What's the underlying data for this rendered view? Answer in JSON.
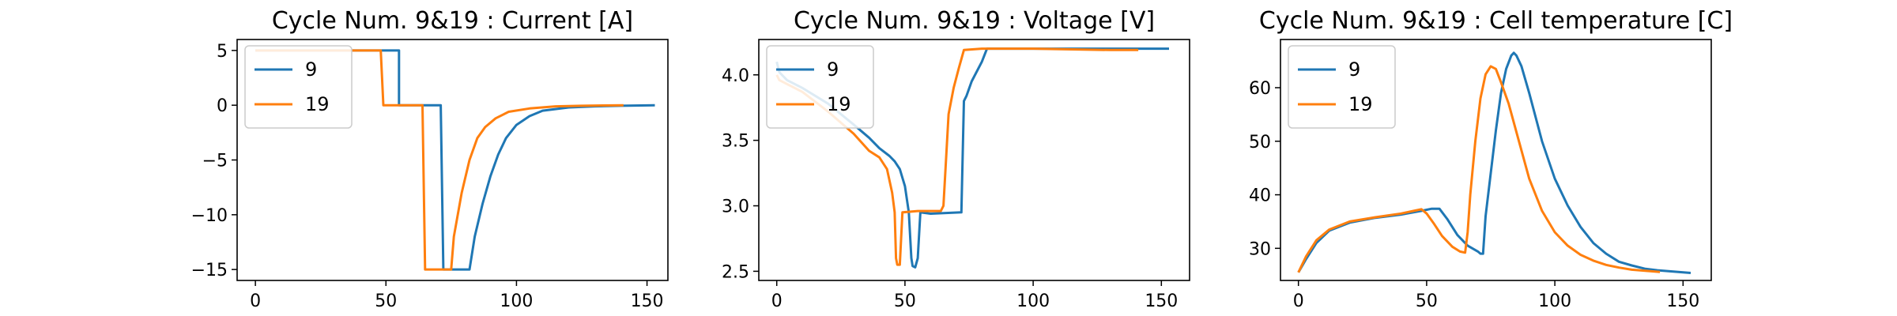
{
  "chart_data": [
    {
      "type": "line",
      "title": "Cycle Num. 9&19 : Current [A]",
      "xlabel": "",
      "ylabel": "",
      "xlim": [
        -7,
        158
      ],
      "ylim": [
        -16,
        6
      ],
      "xticks": [
        "0",
        "50",
        "100",
        "150"
      ],
      "xtick_values": [
        0,
        50,
        100,
        150
      ],
      "yticks": [
        "5",
        "0",
        "−5",
        "−10",
        "−15"
      ],
      "ytick_values": [
        5,
        0,
        -5,
        -10,
        -15
      ],
      "grid": false,
      "legend": "top-left",
      "series": [
        {
          "name": "9",
          "color": "#1f77b4",
          "points": [
            [
              0,
              5
            ],
            [
              54,
              5
            ],
            [
              54,
              5
            ],
            [
              55,
              5
            ],
            [
              55,
              0
            ],
            [
              71,
              0
            ],
            [
              72,
              -15
            ],
            [
              82,
              -15
            ],
            [
              84,
              -12
            ],
            [
              87,
              -9
            ],
            [
              90,
              -6.5
            ],
            [
              93,
              -4.5
            ],
            [
              96,
              -3
            ],
            [
              100,
              -1.8
            ],
            [
              105,
              -1
            ],
            [
              110,
              -0.5
            ],
            [
              120,
              -0.2
            ],
            [
              130,
              -0.1
            ],
            [
              140,
              -0.05
            ],
            [
              153,
              0
            ]
          ]
        },
        {
          "name": "19",
          "color": "#ff7f0e",
          "points": [
            [
              0,
              5
            ],
            [
              48,
              5
            ],
            [
              49,
              0
            ],
            [
              64,
              0
            ],
            [
              65,
              -15
            ],
            [
              75,
              -15
            ],
            [
              76,
              -12
            ],
            [
              79,
              -8
            ],
            [
              82,
              -5
            ],
            [
              85,
              -3
            ],
            [
              88,
              -2
            ],
            [
              92,
              -1.2
            ],
            [
              97,
              -0.6
            ],
            [
              105,
              -0.3
            ],
            [
              115,
              -0.1
            ],
            [
              125,
              -0.05
            ],
            [
              141,
              0
            ]
          ]
        }
      ]
    },
    {
      "type": "line",
      "title": "Cycle Num. 9&19 : Voltage [V]",
      "xlabel": "",
      "ylabel": "",
      "xlim": [
        -7,
        161
      ],
      "ylim": [
        2.43,
        4.27
      ],
      "xticks": [
        "0",
        "50",
        "100",
        "150"
      ],
      "xtick_values": [
        0,
        50,
        100,
        150
      ],
      "yticks": [
        "4.0",
        "3.5",
        "3.0",
        "2.5"
      ],
      "ytick_values": [
        4.0,
        3.5,
        3.0,
        2.5
      ],
      "grid": false,
      "legend": "top-left",
      "series": [
        {
          "name": "9",
          "color": "#1f77b4",
          "points": [
            [
              0,
              4.1
            ],
            [
              1,
              4.02
            ],
            [
              4,
              3.96
            ],
            [
              10,
              3.9
            ],
            [
              20,
              3.78
            ],
            [
              30,
              3.62
            ],
            [
              36,
              3.52
            ],
            [
              40,
              3.44
            ],
            [
              44,
              3.38
            ],
            [
              46,
              3.34
            ],
            [
              48,
              3.28
            ],
            [
              50,
              3.15
            ],
            [
              51.5,
              2.95
            ],
            [
              52.5,
              2.6
            ],
            [
              53,
              2.54
            ],
            [
              54,
              2.53
            ],
            [
              55,
              2.6
            ],
            [
              56,
              2.95
            ],
            [
              60,
              2.94
            ],
            [
              72,
              2.95
            ],
            [
              73,
              3.8
            ],
            [
              74,
              3.84
            ],
            [
              76,
              3.95
            ],
            [
              80,
              4.1
            ],
            [
              82,
              4.2
            ],
            [
              100,
              4.2
            ],
            [
              140,
              4.2
            ],
            [
              153,
              4.2
            ]
          ]
        },
        {
          "name": "19",
          "color": "#ff7f0e",
          "points": [
            [
              0,
              4.0
            ],
            [
              1,
              3.96
            ],
            [
              4,
              3.93
            ],
            [
              10,
              3.87
            ],
            [
              20,
              3.72
            ],
            [
              30,
              3.55
            ],
            [
              36,
              3.42
            ],
            [
              40,
              3.37
            ],
            [
              43,
              3.28
            ],
            [
              45,
              3.1
            ],
            [
              46,
              2.95
            ],
            [
              46.5,
              2.6
            ],
            [
              47,
              2.55
            ],
            [
              48,
              2.55
            ],
            [
              49,
              2.95
            ],
            [
              55,
              2.96
            ],
            [
              64,
              2.96
            ],
            [
              65,
              3.0
            ],
            [
              67,
              3.7
            ],
            [
              69,
              3.9
            ],
            [
              71,
              4.05
            ],
            [
              73,
              4.19
            ],
            [
              80,
              4.2
            ],
            [
              100,
              4.2
            ],
            [
              130,
              4.19
            ],
            [
              141,
              4.19
            ]
          ]
        }
      ]
    },
    {
      "type": "line",
      "title": "Cycle Num. 9&19 : Cell temperature [C]",
      "xlabel": "",
      "ylabel": "",
      "xlim": [
        -7,
        161
      ],
      "ylim": [
        24,
        69
      ],
      "xticks": [
        "0",
        "50",
        "100",
        "150"
      ],
      "xtick_values": [
        0,
        50,
        100,
        150
      ],
      "yticks": [
        "60",
        "50",
        "40",
        "30"
      ],
      "ytick_values": [
        60,
        50,
        40,
        30
      ],
      "grid": false,
      "legend": "top-left",
      "series": [
        {
          "name": "9",
          "color": "#1f77b4",
          "points": [
            [
              0,
              25.5
            ],
            [
              3,
              28
            ],
            [
              7,
              31
            ],
            [
              12,
              33.3
            ],
            [
              20,
              34.8
            ],
            [
              30,
              35.7
            ],
            [
              40,
              36.3
            ],
            [
              48,
              37
            ],
            [
              52,
              37.4
            ],
            [
              55,
              37.4
            ],
            [
              58,
              35.5
            ],
            [
              62,
              32.5
            ],
            [
              66,
              30.5
            ],
            [
              70,
              29.4
            ],
            [
              71,
              29
            ],
            [
              72,
              29
            ],
            [
              73,
              36
            ],
            [
              75,
              44
            ],
            [
              77,
              52
            ],
            [
              79,
              59
            ],
            [
              81,
              63.5
            ],
            [
              83,
              66
            ],
            [
              84,
              66.5
            ],
            [
              85,
              66
            ],
            [
              87,
              64
            ],
            [
              90,
              59
            ],
            [
              95,
              50
            ],
            [
              100,
              43
            ],
            [
              105,
              38
            ],
            [
              110,
              34
            ],
            [
              115,
              31
            ],
            [
              120,
              29
            ],
            [
              125,
              27.5
            ],
            [
              130,
              26.8
            ],
            [
              135,
              26.2
            ],
            [
              140,
              25.9
            ],
            [
              153,
              25.4
            ]
          ]
        },
        {
          "name": "19",
          "color": "#ff7f0e",
          "points": [
            [
              0,
              25.5
            ],
            [
              3,
              28.5
            ],
            [
              7,
              31.5
            ],
            [
              12,
              33.5
            ],
            [
              20,
              35
            ],
            [
              30,
              35.8
            ],
            [
              40,
              36.5
            ],
            [
              45,
              37
            ],
            [
              48,
              37.3
            ],
            [
              50,
              36.5
            ],
            [
              53,
              34.5
            ],
            [
              56,
              32.3
            ],
            [
              60,
              30.3
            ],
            [
              63,
              29.4
            ],
            [
              65,
              29.2
            ],
            [
              66,
              33
            ],
            [
              67,
              40
            ],
            [
              69,
              50
            ],
            [
              71,
              58
            ],
            [
              73,
              62.5
            ],
            [
              75,
              64
            ],
            [
              77,
              63.5
            ],
            [
              79,
              61
            ],
            [
              82,
              57
            ],
            [
              86,
              50
            ],
            [
              90,
              43
            ],
            [
              95,
              37
            ],
            [
              100,
              33
            ],
            [
              105,
              30.5
            ],
            [
              110,
              28.8
            ],
            [
              115,
              27.7
            ],
            [
              120,
              26.9
            ],
            [
              125,
              26.4
            ],
            [
              130,
              26
            ],
            [
              141,
              25.6
            ]
          ]
        }
      ]
    }
  ]
}
